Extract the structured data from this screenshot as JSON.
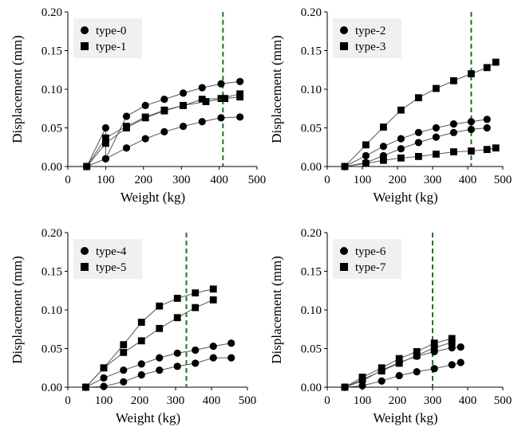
{
  "chart_data": [
    {
      "type": "scatter",
      "xlabel": "Weight (kg)",
      "ylabel": "Displacement (mm)",
      "xlim": [
        0,
        500
      ],
      "ylim": [
        0,
        0.2
      ],
      "xticks": [
        "0",
        "100",
        "200",
        "300",
        "400",
        "500"
      ],
      "yticks": [
        "0.00",
        "0.05",
        "0.10",
        "0.15",
        "0.20"
      ],
      "vline_x": 410,
      "legend_position": "top-left",
      "series": [
        {
          "name": "type-0",
          "marker": "circle",
          "x": [
            50,
            100,
            100,
            155,
            205,
            255,
            305,
            355,
            405,
            455
          ],
          "y": [
            0.0,
            0.05,
            0.01,
            0.065,
            0.079,
            0.087,
            0.095,
            0.102,
            0.107,
            0.11
          ]
        },
        {
          "name": "type-0",
          "marker": "circle",
          "x": [
            50,
            100,
            155,
            205,
            255,
            305,
            355,
            405,
            455
          ],
          "y": [
            0.0,
            0.01,
            0.024,
            0.036,
            0.045,
            0.052,
            0.058,
            0.063,
            0.064
          ]
        },
        {
          "name": "type-1",
          "marker": "square",
          "x": [
            50,
            100,
            155,
            205,
            255,
            305,
            355,
            405,
            455
          ],
          "y": [
            0.0,
            0.037,
            0.052,
            0.064,
            0.073,
            0.079,
            0.087,
            0.088,
            0.094
          ]
        },
        {
          "name": "type-1",
          "marker": "square",
          "x": [
            50,
            100,
            155,
            205,
            255,
            305,
            365,
            415,
            455
          ],
          "y": [
            0.0,
            0.03,
            0.05,
            0.063,
            0.072,
            0.079,
            0.084,
            0.088,
            0.09
          ]
        }
      ]
    },
    {
      "type": "scatter",
      "xlabel": "Weight (kg)",
      "ylabel": "Displacement (mm)",
      "xlim": [
        0,
        500
      ],
      "ylim": [
        0,
        0.2
      ],
      "xticks": [
        "0",
        "100",
        "200",
        "300",
        "400",
        "500"
      ],
      "yticks": [
        "0.00",
        "0.05",
        "0.10",
        "0.15",
        "0.20"
      ],
      "vline_x": 410,
      "legend_position": "top-left",
      "series": [
        {
          "name": "type-2",
          "marker": "circle",
          "x": [
            50,
            110,
            160,
            210,
            260,
            310,
            360,
            410,
            455
          ],
          "y": [
            0.0,
            0.014,
            0.026,
            0.036,
            0.044,
            0.05,
            0.055,
            0.058,
            0.061
          ]
        },
        {
          "name": "type-2",
          "marker": "circle",
          "x": [
            50,
            110,
            160,
            210,
            260,
            310,
            360,
            410,
            455
          ],
          "y": [
            0.0,
            0.005,
            0.014,
            0.023,
            0.031,
            0.038,
            0.044,
            0.048,
            0.05
          ]
        },
        {
          "name": "type-3",
          "marker": "square",
          "x": [
            50,
            110,
            160,
            210,
            260,
            310,
            360,
            410,
            455,
            480
          ],
          "y": [
            0.0,
            0.028,
            0.051,
            0.073,
            0.089,
            0.101,
            0.111,
            0.12,
            0.128,
            0.135
          ]
        },
        {
          "name": "type-3",
          "marker": "square",
          "x": [
            50,
            110,
            160,
            210,
            260,
            310,
            360,
            410,
            455,
            480
          ],
          "y": [
            0.0,
            0.004,
            0.008,
            0.011,
            0.013,
            0.016,
            0.019,
            0.02,
            0.022,
            0.024
          ]
        }
      ]
    },
    {
      "type": "scatter",
      "xlabel": "Weight (kg)",
      "ylabel": "Displacement (mm)",
      "xlim": [
        0,
        500
      ],
      "ylim": [
        0,
        0.2
      ],
      "xticks": [
        "0",
        "100",
        "200",
        "300",
        "400",
        "500"
      ],
      "yticks": [
        "0.00",
        "0.05",
        "0.10",
        "0.15",
        "0.20"
      ],
      "vline_x": 330,
      "legend_position": "top-left",
      "series": [
        {
          "name": "type-4",
          "marker": "circle",
          "x": [
            50,
            100,
            155,
            205,
            255,
            305,
            355,
            405,
            455
          ],
          "y": [
            0.0,
            0.012,
            0.022,
            0.03,
            0.038,
            0.044,
            0.048,
            0.053,
            0.057
          ]
        },
        {
          "name": "type-4",
          "marker": "circle",
          "x": [
            50,
            100,
            155,
            205,
            255,
            305,
            355,
            405,
            455
          ],
          "y": [
            0.0,
            0.001,
            0.007,
            0.016,
            0.022,
            0.027,
            0.031,
            0.038,
            0.038
          ]
        },
        {
          "name": "type-5",
          "marker": "square",
          "x": [
            50,
            100,
            155,
            205,
            255,
            305,
            355,
            405
          ],
          "y": [
            0.0,
            0.025,
            0.055,
            0.084,
            0.105,
            0.115,
            0.122,
            0.127
          ]
        },
        {
          "name": "type-5",
          "marker": "square",
          "x": [
            50,
            100,
            155,
            205,
            255,
            305,
            355,
            405
          ],
          "y": [
            0.0,
            0.025,
            0.045,
            0.06,
            0.076,
            0.09,
            0.103,
            0.113
          ]
        }
      ]
    },
    {
      "type": "scatter",
      "xlabel": "Weight (kg)",
      "ylabel": "Displacement (mm)",
      "xlim": [
        0,
        500
      ],
      "ylim": [
        0,
        0.2
      ],
      "xticks": [
        "0",
        "100",
        "200",
        "300",
        "400",
        "500"
      ],
      "yticks": [
        "0.00",
        "0.05",
        "0.10",
        "0.15",
        "0.20"
      ],
      "vline_x": 300,
      "legend_position": "top-left",
      "series": [
        {
          "name": "type-6",
          "marker": "circle",
          "x": [
            50,
            100,
            155,
            205,
            255,
            305,
            355,
            380
          ],
          "y": [
            0.0,
            0.008,
            0.022,
            0.032,
            0.04,
            0.046,
            0.051,
            0.052
          ]
        },
        {
          "name": "type-6",
          "marker": "circle",
          "x": [
            50,
            100,
            155,
            205,
            255,
            305,
            355,
            380
          ],
          "y": [
            0.0,
            0.002,
            0.008,
            0.015,
            0.02,
            0.024,
            0.029,
            0.032
          ]
        },
        {
          "name": "type-7",
          "marker": "square",
          "x": [
            50,
            100,
            155,
            205,
            255,
            305,
            355
          ],
          "y": [
            0.0,
            0.013,
            0.025,
            0.037,
            0.046,
            0.057,
            0.063
          ]
        },
        {
          "name": "type-7",
          "marker": "square",
          "x": [
            50,
            100,
            155,
            205,
            255,
            305,
            355
          ],
          "y": [
            0.0,
            0.01,
            0.021,
            0.031,
            0.041,
            0.051,
            0.058
          ]
        }
      ]
    }
  ]
}
